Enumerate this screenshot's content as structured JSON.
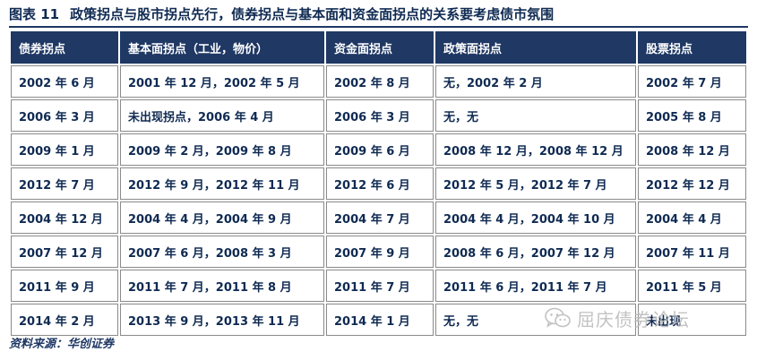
{
  "figure": {
    "label": "图表 11",
    "title": "政策拐点与股市拐点先行，债券拐点与基本面和资金面拐点的关系要考虑债市氛围"
  },
  "table": {
    "headers": [
      "债券拐点",
      "基本面拐点（工业，物价）",
      "资金面拐点",
      "政策面拐点",
      "股票拐点"
    ],
    "rows": [
      [
        "2002 年 6 月",
        "2001 年 12 月，2002 年 5 月",
        "2002 年 8 月",
        "无，2002 年 2 月",
        "2002 年 7 月"
      ],
      [
        "2006 年 3 月",
        "未出现拐点，2006 年 4 月",
        "2006 年 3 月",
        "无，无",
        "2005 年 8 月"
      ],
      [
        "2009 年 1 月",
        "2009 年 2 月，2009 年 8 月",
        "2009 年 6 月",
        "2008 年 12 月，2008 年 12 月",
        "2008 年 12 月"
      ],
      [
        "2012 年 7 月",
        "2012 年 9 月，2012 年 11 月",
        "2012 年 6 月",
        "2012 年 5 月，2012 年 7 月",
        "2012 年 12 月"
      ],
      [
        "2004 年 12 月",
        "2004 年 4 月，2004 年 9 月",
        "2004 年 7 月",
        "2004 年 4 月，2004 年 10 月",
        "2004 年 4 月"
      ],
      [
        "2007 年 12 月",
        "2007 年 6 月，2008 年 3 月",
        "2007 年 9 月",
        "2008 年 6 月，2007 年 12 月",
        "2007 年 11 月"
      ],
      [
        "2011 年 9 月",
        "2011 年 7 月，2011 年 8 月",
        "2011 年 7 月",
        "2011 年 6 月，2011 年 7 月",
        "2011 年 5 月"
      ],
      [
        "2014 年 2 月",
        "2013 年 9 月，2013 年 11 月",
        "2014 年 1 月",
        "无，无",
        "未出现"
      ]
    ]
  },
  "source": "资料来源：华创证券",
  "watermark": {
    "icon": "wechat-icon",
    "text": "屈庆债券论坛"
  },
  "colors": {
    "header_bg": "#1f3864",
    "header_text": "#ffffff",
    "body_text": "#0f2a52",
    "cell_border": "#8a8a8a",
    "watermark": "#b8b8b8"
  }
}
